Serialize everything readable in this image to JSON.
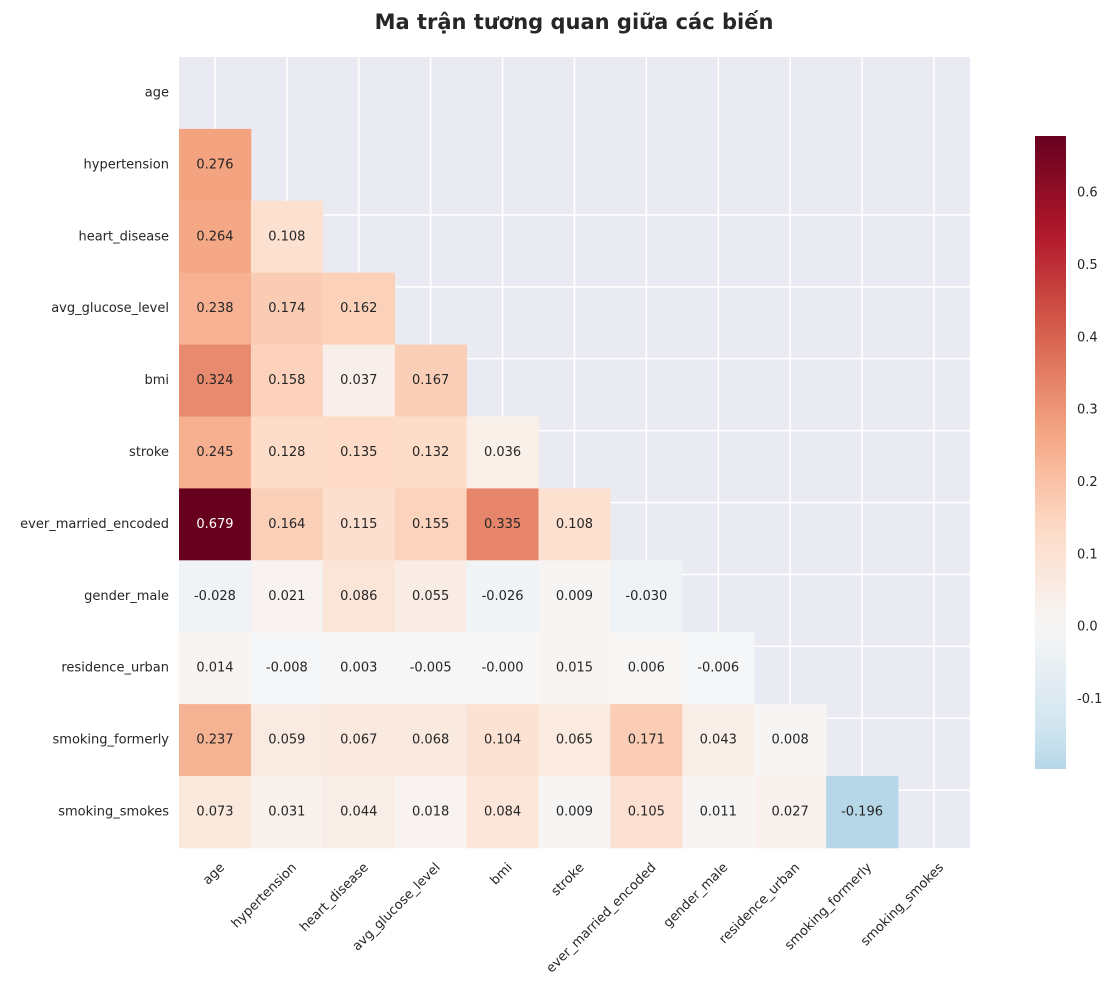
{
  "chart_data": {
    "type": "heatmap",
    "title": "Ma trận tương quan giữa các biến",
    "variables": [
      "age",
      "hypertension",
      "heart_disease",
      "avg_glucose_level",
      "bmi",
      "stroke",
      "ever_married_encoded",
      "gender_male",
      "residence_urban",
      "smoking_formerly",
      "smoking_smokes"
    ],
    "mask": "upper-triangle-including-diagonal",
    "cells": [
      {
        "row": "hypertension",
        "col": "age",
        "value": 0.276,
        "label": "0.276"
      },
      {
        "row": "heart_disease",
        "col": "age",
        "value": 0.264,
        "label": "0.264"
      },
      {
        "row": "heart_disease",
        "col": "hypertension",
        "value": 0.108,
        "label": "0.108"
      },
      {
        "row": "avg_glucose_level",
        "col": "age",
        "value": 0.238,
        "label": "0.238"
      },
      {
        "row": "avg_glucose_level",
        "col": "hypertension",
        "value": 0.174,
        "label": "0.174"
      },
      {
        "row": "avg_glucose_level",
        "col": "heart_disease",
        "value": 0.162,
        "label": "0.162"
      },
      {
        "row": "bmi",
        "col": "age",
        "value": 0.324,
        "label": "0.324"
      },
      {
        "row": "bmi",
        "col": "hypertension",
        "value": 0.158,
        "label": "0.158"
      },
      {
        "row": "bmi",
        "col": "heart_disease",
        "value": 0.037,
        "label": "0.037"
      },
      {
        "row": "bmi",
        "col": "avg_glucose_level",
        "value": 0.167,
        "label": "0.167"
      },
      {
        "row": "stroke",
        "col": "age",
        "value": 0.245,
        "label": "0.245"
      },
      {
        "row": "stroke",
        "col": "hypertension",
        "value": 0.128,
        "label": "0.128"
      },
      {
        "row": "stroke",
        "col": "heart_disease",
        "value": 0.135,
        "label": "0.135"
      },
      {
        "row": "stroke",
        "col": "avg_glucose_level",
        "value": 0.132,
        "label": "0.132"
      },
      {
        "row": "stroke",
        "col": "bmi",
        "value": 0.036,
        "label": "0.036"
      },
      {
        "row": "ever_married_encoded",
        "col": "age",
        "value": 0.679,
        "label": "0.679"
      },
      {
        "row": "ever_married_encoded",
        "col": "hypertension",
        "value": 0.164,
        "label": "0.164"
      },
      {
        "row": "ever_married_encoded",
        "col": "heart_disease",
        "value": 0.115,
        "label": "0.115"
      },
      {
        "row": "ever_married_encoded",
        "col": "avg_glucose_level",
        "value": 0.155,
        "label": "0.155"
      },
      {
        "row": "ever_married_encoded",
        "col": "bmi",
        "value": 0.335,
        "label": "0.335"
      },
      {
        "row": "ever_married_encoded",
        "col": "stroke",
        "value": 0.108,
        "label": "0.108"
      },
      {
        "row": "gender_male",
        "col": "age",
        "value": -0.028,
        "label": "-0.028"
      },
      {
        "row": "gender_male",
        "col": "hypertension",
        "value": 0.021,
        "label": "0.021"
      },
      {
        "row": "gender_male",
        "col": "heart_disease",
        "value": 0.086,
        "label": "0.086"
      },
      {
        "row": "gender_male",
        "col": "avg_glucose_level",
        "value": 0.055,
        "label": "0.055"
      },
      {
        "row": "gender_male",
        "col": "bmi",
        "value": -0.026,
        "label": "-0.026"
      },
      {
        "row": "gender_male",
        "col": "stroke",
        "value": 0.009,
        "label": "0.009"
      },
      {
        "row": "gender_male",
        "col": "ever_married_encoded",
        "value": -0.03,
        "label": "-0.030"
      },
      {
        "row": "residence_urban",
        "col": "age",
        "value": 0.014,
        "label": "0.014"
      },
      {
        "row": "residence_urban",
        "col": "hypertension",
        "value": -0.008,
        "label": "-0.008"
      },
      {
        "row": "residence_urban",
        "col": "heart_disease",
        "value": 0.003,
        "label": "0.003"
      },
      {
        "row": "residence_urban",
        "col": "avg_glucose_level",
        "value": -0.005,
        "label": "-0.005"
      },
      {
        "row": "residence_urban",
        "col": "bmi",
        "value": -0.0,
        "label": "-0.000"
      },
      {
        "row": "residence_urban",
        "col": "stroke",
        "value": 0.015,
        "label": "0.015"
      },
      {
        "row": "residence_urban",
        "col": "ever_married_encoded",
        "value": 0.006,
        "label": "0.006"
      },
      {
        "row": "residence_urban",
        "col": "gender_male",
        "value": -0.006,
        "label": "-0.006"
      },
      {
        "row": "smoking_formerly",
        "col": "age",
        "value": 0.237,
        "label": "0.237"
      },
      {
        "row": "smoking_formerly",
        "col": "hypertension",
        "value": 0.059,
        "label": "0.059"
      },
      {
        "row": "smoking_formerly",
        "col": "heart_disease",
        "value": 0.067,
        "label": "0.067"
      },
      {
        "row": "smoking_formerly",
        "col": "avg_glucose_level",
        "value": 0.068,
        "label": "0.068"
      },
      {
        "row": "smoking_formerly",
        "col": "bmi",
        "value": 0.104,
        "label": "0.104"
      },
      {
        "row": "smoking_formerly",
        "col": "stroke",
        "value": 0.065,
        "label": "0.065"
      },
      {
        "row": "smoking_formerly",
        "col": "ever_married_encoded",
        "value": 0.171,
        "label": "0.171"
      },
      {
        "row": "smoking_formerly",
        "col": "gender_male",
        "value": 0.043,
        "label": "0.043"
      },
      {
        "row": "smoking_formerly",
        "col": "residence_urban",
        "value": 0.008,
        "label": "0.008"
      },
      {
        "row": "smoking_smokes",
        "col": "age",
        "value": 0.073,
        "label": "0.073"
      },
      {
        "row": "smoking_smokes",
        "col": "hypertension",
        "value": 0.031,
        "label": "0.031"
      },
      {
        "row": "smoking_smokes",
        "col": "heart_disease",
        "value": 0.044,
        "label": "0.044"
      },
      {
        "row": "smoking_smokes",
        "col": "avg_glucose_level",
        "value": 0.018,
        "label": "0.018"
      },
      {
        "row": "smoking_smokes",
        "col": "bmi",
        "value": 0.084,
        "label": "0.084"
      },
      {
        "row": "smoking_smokes",
        "col": "stroke",
        "value": 0.009,
        "label": "0.009"
      },
      {
        "row": "smoking_smokes",
        "col": "ever_married_encoded",
        "value": 0.105,
        "label": "0.105"
      },
      {
        "row": "smoking_smokes",
        "col": "gender_male",
        "value": 0.011,
        "label": "0.011"
      },
      {
        "row": "smoking_smokes",
        "col": "residence_urban",
        "value": 0.027,
        "label": "0.027"
      },
      {
        "row": "smoking_smokes",
        "col": "smoking_formerly",
        "value": -0.196,
        "label": "-0.196"
      }
    ],
    "colorbar": {
      "colormap": "RdBu_r",
      "center": 0,
      "vmin": -0.196,
      "vmax": 0.679,
      "ticks": [
        {
          "value": -0.1,
          "label": "-0.1"
        },
        {
          "value": 0.0,
          "label": "0.0"
        },
        {
          "value": 0.1,
          "label": "0.1"
        },
        {
          "value": 0.2,
          "label": "0.2"
        },
        {
          "value": 0.3,
          "label": "0.3"
        },
        {
          "value": 0.4,
          "label": "0.4"
        },
        {
          "value": 0.5,
          "label": "0.5"
        },
        {
          "value": 0.6,
          "label": "0.6"
        }
      ]
    },
    "grid": true,
    "xtick_rotation": "45°",
    "colors": {
      "axes_background": "#eaeaf2",
      "grid": "#ffffff",
      "text_dark": "#262626",
      "text_light": "#ffffff",
      "colormap_stops": [
        "#053061",
        "#2166ac",
        "#4393c3",
        "#92c5de",
        "#d1e5f0",
        "#f7f7f7",
        "#fddbc7",
        "#f4a582",
        "#d6604d",
        "#b2182b",
        "#67001f"
      ]
    }
  }
}
